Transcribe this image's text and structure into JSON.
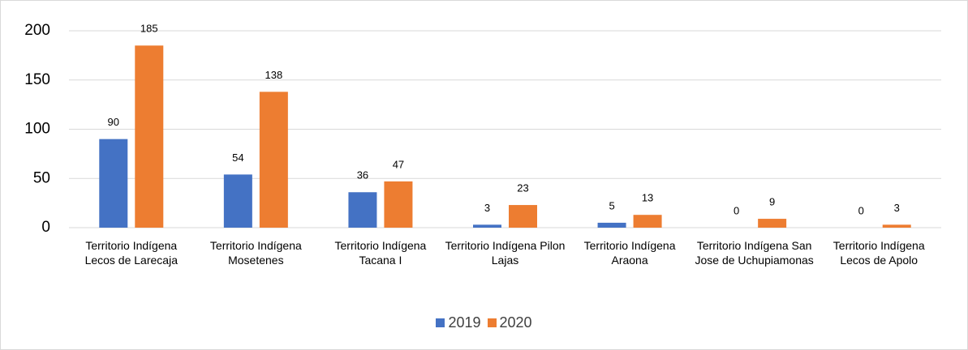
{
  "chart_data": {
    "type": "bar",
    "categories": [
      "Territorio Indígena Lecos de Larecaja",
      "Territorio Indígena Mosetenes",
      "Territorio Indígena Tacana I",
      "Territorio Indígena Pilon Lajas",
      "Territorio Indígena Araona",
      "Territorio Indígena San Jose de Uchupiamonas",
      "Territorio Indígena Lecos de Apolo"
    ],
    "series": [
      {
        "name": "2019",
        "color": "#4472c4",
        "values": [
          90,
          54,
          36,
          3,
          5,
          0,
          0
        ]
      },
      {
        "name": "2020",
        "color": "#ed7d31",
        "values": [
          185,
          138,
          47,
          23,
          13,
          9,
          3
        ]
      }
    ],
    "ylim": [
      0,
      200
    ],
    "yticks": [
      0,
      50,
      100,
      150,
      200
    ],
    "grid": true,
    "legend": "bottom"
  }
}
